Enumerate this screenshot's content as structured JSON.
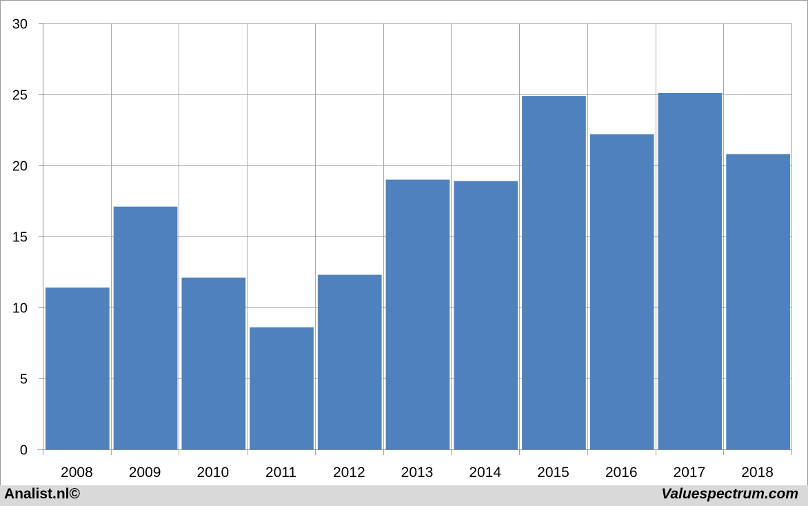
{
  "chart_data": {
    "type": "bar",
    "categories": [
      "2008",
      "2009",
      "2010",
      "2011",
      "2012",
      "2013",
      "2014",
      "2015",
      "2016",
      "2017",
      "2018"
    ],
    "values": [
      11.4,
      17.1,
      12.1,
      8.6,
      12.3,
      19.0,
      18.9,
      24.9,
      22.2,
      25.1,
      20.8
    ],
    "title": "",
    "xlabel": "",
    "ylabel": "",
    "ylim": [
      0,
      30
    ],
    "yticks": [
      "0",
      "5",
      "10",
      "15",
      "20",
      "25",
      "30"
    ],
    "grid": true,
    "bar_color": "#4f81bd",
    "grid_color": "#a6a6a6"
  },
  "footer": {
    "left_text": "Analist.nl©",
    "right_text": "Valuespectrum.com",
    "background": "#d9d9d9"
  }
}
